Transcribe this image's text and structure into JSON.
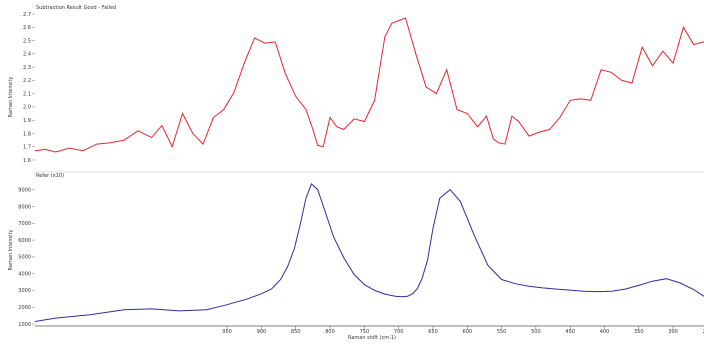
{
  "chart_data": [
    {
      "type": "line",
      "title": "Subtraction Result Good - Failed",
      "ylabel": "Raman Intensity",
      "ylim": [
        1.6,
        2.7
      ],
      "yticks": [
        "1.6",
        "1.7",
        "1.8",
        "1.9",
        "2.0",
        "2.1",
        "2.2",
        "2.3",
        "2.4",
        "2.5",
        "2.6",
        "2.7"
      ],
      "xlim": [
        1230,
        255
      ],
      "color": "#e3272b",
      "grid": false,
      "series": [
        {
          "x": [
            1230,
            1215,
            1200,
            1180,
            1160,
            1140,
            1120,
            1100,
            1080,
            1060,
            1045,
            1030,
            1015,
            1000,
            985,
            970,
            955,
            940,
            925,
            910,
            895,
            880,
            865,
            850,
            835,
            825,
            818,
            810,
            800,
            790,
            780,
            765,
            750,
            735,
            720,
            710,
            700,
            690,
            675,
            660,
            645,
            630,
            615,
            600,
            585,
            572,
            562,
            555,
            545,
            535,
            525,
            510,
            495,
            480,
            465,
            450,
            435,
            420,
            405,
            390,
            375,
            360,
            345,
            330,
            315,
            300,
            285,
            270,
            255
          ],
          "y": [
            1.67,
            1.68,
            1.66,
            1.69,
            1.67,
            1.72,
            1.73,
            1.75,
            1.82,
            1.77,
            1.86,
            1.7,
            1.95,
            1.8,
            1.72,
            1.92,
            1.98,
            2.11,
            2.33,
            2.52,
            2.48,
            2.49,
            2.25,
            2.08,
            1.98,
            1.83,
            1.71,
            1.7,
            1.92,
            1.85,
            1.83,
            1.91,
            1.89,
            2.05,
            2.53,
            2.63,
            2.65,
            2.67,
            2.4,
            2.15,
            2.1,
            2.28,
            1.98,
            1.95,
            1.85,
            1.93,
            1.76,
            1.73,
            1.72,
            1.93,
            1.89,
            1.78,
            1.81,
            1.83,
            1.92,
            2.05,
            2.06,
            2.05,
            2.28,
            2.26,
            2.2,
            2.18,
            2.45,
            2.31,
            2.42,
            2.33,
            2.6,
            2.47,
            2.49
          ]
        }
      ]
    },
    {
      "type": "line",
      "title": "Refer (x10)",
      "xlabel": "Raman shift (cm-1)",
      "ylabel": "Raman Intensity",
      "ylim": [
        1000,
        9700
      ],
      "yticks": [
        "1000",
        "2000",
        "3000",
        "4000",
        "5000",
        "6000",
        "7000",
        "8000",
        "9000"
      ],
      "xlim": [
        1230,
        255
      ],
      "xticks": [
        "950",
        "900",
        "850",
        "800",
        "750",
        "700",
        "650",
        "600",
        "550",
        "500",
        "450",
        "400",
        "350",
        "300",
        "250"
      ],
      "color": "#2b2fa0",
      "grid": false,
      "series": [
        {
          "x": [
            1230,
            1200,
            1150,
            1100,
            1060,
            1020,
            980,
            950,
            920,
            900,
            885,
            872,
            862,
            852,
            843,
            835,
            827,
            818,
            808,
            795,
            780,
            765,
            750,
            735,
            720,
            705,
            695,
            687,
            680,
            673,
            666,
            658,
            650,
            640,
            625,
            610,
            590,
            570,
            550,
            530,
            510,
            490,
            470,
            450,
            430,
            410,
            390,
            370,
            350,
            330,
            310,
            290,
            270,
            255
          ],
          "y": [
            1150,
            1350,
            1550,
            1850,
            1900,
            1780,
            1850,
            2150,
            2500,
            2800,
            3100,
            3650,
            4400,
            5500,
            7000,
            8500,
            9350,
            9000,
            7800,
            6200,
            4950,
            3950,
            3350,
            3000,
            2780,
            2650,
            2620,
            2650,
            2800,
            3100,
            3700,
            4800,
            6700,
            8500,
            9000,
            8300,
            6300,
            4500,
            3650,
            3400,
            3250,
            3150,
            3080,
            3020,
            2950,
            2930,
            2950,
            3080,
            3300,
            3550,
            3700,
            3450,
            3050,
            2650
          ]
        }
      ]
    }
  ]
}
